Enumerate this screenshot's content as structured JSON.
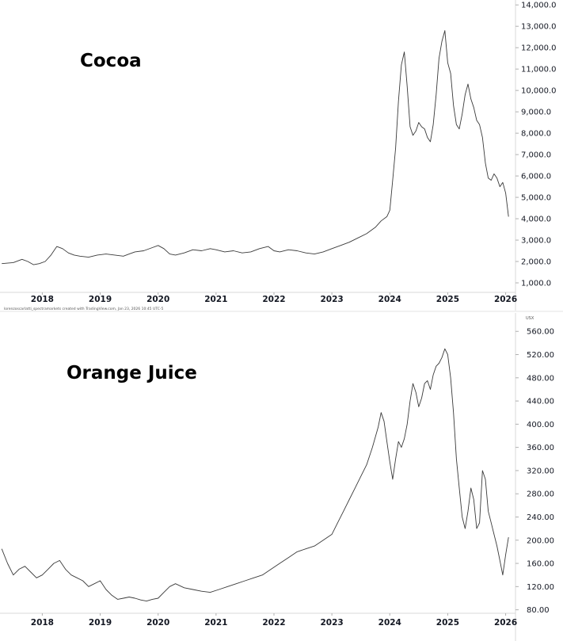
{
  "chart_data": [
    {
      "type": "line",
      "title": "Cocoa",
      "xlabel": "",
      "ylabel": "",
      "x_tick_labels": [
        "2018",
        "2019",
        "2020",
        "2021",
        "2022",
        "2023",
        "2024",
        "2025",
        "2026"
      ],
      "y_tick_labels": [
        "1,000.0",
        "2,000.0",
        "3,000.0",
        "4,000.0",
        "5,000.0",
        "6,000.0",
        "7,000.0",
        "8,000.0",
        "9,000.0",
        "10,000.0",
        "11,000.0",
        "12,000.0",
        "13,000.0",
        "14,000.0"
      ],
      "y_ticks": [
        1000,
        2000,
        3000,
        4000,
        5000,
        6000,
        7000,
        8000,
        9000,
        10000,
        11000,
        12000,
        13000,
        14000
      ],
      "xlim": [
        2017.27,
        2026.17
      ],
      "ylim": [
        630,
        14230
      ],
      "grid": false,
      "series": [
        {
          "x": [
            2017.3,
            2017.5,
            2017.65,
            2017.75,
            2017.85,
            2017.95,
            2018.05,
            2018.15,
            2018.25,
            2018.35,
            2018.45,
            2018.55,
            2018.65,
            2018.8,
            2018.95,
            2019.1,
            2019.25,
            2019.4,
            2019.5,
            2019.6,
            2019.75,
            2019.9,
            2020.0,
            2020.1,
            2020.2,
            2020.3,
            2020.45,
            2020.6,
            2020.75,
            2020.9,
            2021.0,
            2021.15,
            2021.3,
            2021.45,
            2021.6,
            2021.75,
            2021.9,
            2022.0,
            2022.1,
            2022.25,
            2022.4,
            2022.55,
            2022.7,
            2022.85,
            2023.0,
            2023.15,
            2023.3,
            2023.45,
            2023.6,
            2023.75,
            2023.85,
            2023.95,
            2024.0,
            2024.05,
            2024.1,
            2024.15,
            2024.2,
            2024.25,
            2024.3,
            2024.35,
            2024.4,
            2024.45,
            2024.5,
            2024.55,
            2024.6,
            2024.65,
            2024.7,
            2024.75,
            2024.8,
            2024.85,
            2024.9,
            2024.95,
            2025.0,
            2025.05,
            2025.1,
            2025.15,
            2025.2,
            2025.25,
            2025.3,
            2025.35,
            2025.4,
            2025.45,
            2025.5,
            2025.55,
            2025.6,
            2025.65,
            2025.7,
            2025.75,
            2025.8,
            2025.85,
            2025.9,
            2025.95,
            2026.0,
            2026.05
          ],
          "y": [
            1900,
            1950,
            2100,
            2000,
            1850,
            1900,
            2000,
            2300,
            2700,
            2600,
            2400,
            2300,
            2250,
            2200,
            2300,
            2350,
            2300,
            2250,
            2350,
            2450,
            2500,
            2650,
            2750,
            2600,
            2350,
            2300,
            2400,
            2550,
            2500,
            2600,
            2550,
            2450,
            2500,
            2400,
            2450,
            2600,
            2700,
            2500,
            2450,
            2550,
            2500,
            2400,
            2350,
            2450,
            2600,
            2750,
            2900,
            3100,
            3300,
            3600,
            3900,
            4100,
            4400,
            5800,
            7300,
            9500,
            11200,
            11800,
            10200,
            8300,
            7900,
            8100,
            8500,
            8300,
            8200,
            7800,
            7600,
            8400,
            9800,
            11500,
            12300,
            12800,
            11300,
            10800,
            9300,
            8400,
            8200,
            8900,
            9800,
            10300,
            9600,
            9200,
            8600,
            8400,
            7800,
            6600,
            5900,
            5800,
            6100,
            5900,
            5500,
            5700,
            5200,
            4100
          ]
        }
      ]
    },
    {
      "type": "line",
      "title": "Orange Juice",
      "xlabel": "",
      "ylabel": "",
      "credit": "lorenzoscarlatti_spectramarkets created with TradingView.com, Jan 23, 2026 10:45 UTC-5",
      "unit": "USX",
      "x_tick_labels": [
        "2018",
        "2019",
        "2020",
        "2021",
        "2022",
        "2023",
        "2024",
        "2025",
        "2026"
      ],
      "y_tick_labels": [
        "80.00",
        "120.00",
        "160.00",
        "200.00",
        "240.00",
        "280.00",
        "320.00",
        "360.00",
        "400.00",
        "440.00",
        "480.00",
        "520.00",
        "560.00"
      ],
      "y_ticks": [
        80,
        120,
        160,
        200,
        240,
        280,
        320,
        360,
        400,
        440,
        480,
        520,
        560
      ],
      "xlim": [
        2017.27,
        2026.17
      ],
      "ylim": [
        74,
        574
      ],
      "grid": false,
      "series": [
        {
          "x": [
            2017.3,
            2017.4,
            2017.5,
            2017.6,
            2017.7,
            2017.8,
            2017.9,
            2018.0,
            2018.1,
            2018.2,
            2018.3,
            2018.4,
            2018.5,
            2018.6,
            2018.7,
            2018.8,
            2018.9,
            2019.0,
            2019.1,
            2019.2,
            2019.3,
            2019.4,
            2019.5,
            2019.6,
            2019.7,
            2019.8,
            2019.9,
            2020.0,
            2020.1,
            2020.2,
            2020.3,
            2020.45,
            2020.6,
            2020.75,
            2020.9,
            2021.05,
            2021.2,
            2021.35,
            2021.5,
            2021.65,
            2021.8,
            2021.95,
            2022.1,
            2022.25,
            2022.4,
            2022.55,
            2022.7,
            2022.85,
            2023.0,
            2023.1,
            2023.2,
            2023.3,
            2023.4,
            2023.5,
            2023.6,
            2023.7,
            2023.8,
            2023.85,
            2023.9,
            2023.95,
            2024.0,
            2024.05,
            2024.1,
            2024.15,
            2024.2,
            2024.25,
            2024.3,
            2024.35,
            2024.4,
            2024.45,
            2024.5,
            2024.55,
            2024.6,
            2024.65,
            2024.7,
            2024.75,
            2024.8,
            2024.85,
            2024.9,
            2024.95,
            2025.0,
            2025.05,
            2025.1,
            2025.15,
            2025.2,
            2025.25,
            2025.3,
            2025.35,
            2025.4,
            2025.45,
            2025.5,
            2025.55,
            2025.6,
            2025.65,
            2025.7,
            2025.75,
            2025.8,
            2025.85,
            2025.9,
            2025.95,
            2026.0,
            2026.05
          ],
          "y": [
            185,
            160,
            140,
            150,
            155,
            145,
            135,
            140,
            150,
            160,
            165,
            150,
            140,
            135,
            130,
            120,
            125,
            130,
            115,
            105,
            98,
            100,
            102,
            100,
            97,
            95,
            98,
            100,
            110,
            120,
            125,
            118,
            115,
            112,
            110,
            115,
            120,
            125,
            130,
            135,
            140,
            150,
            160,
            170,
            180,
            185,
            190,
            200,
            210,
            230,
            250,
            270,
            290,
            310,
            330,
            360,
            395,
            420,
            405,
            370,
            335,
            305,
            340,
            370,
            360,
            375,
            400,
            440,
            470,
            455,
            430,
            445,
            470,
            475,
            460,
            485,
            500,
            505,
            515,
            530,
            520,
            480,
            420,
            340,
            290,
            240,
            220,
            250,
            290,
            270,
            220,
            230,
            320,
            305,
            250,
            230,
            210,
            190,
            165,
            140,
            175,
            205
          ]
        }
      ]
    }
  ]
}
